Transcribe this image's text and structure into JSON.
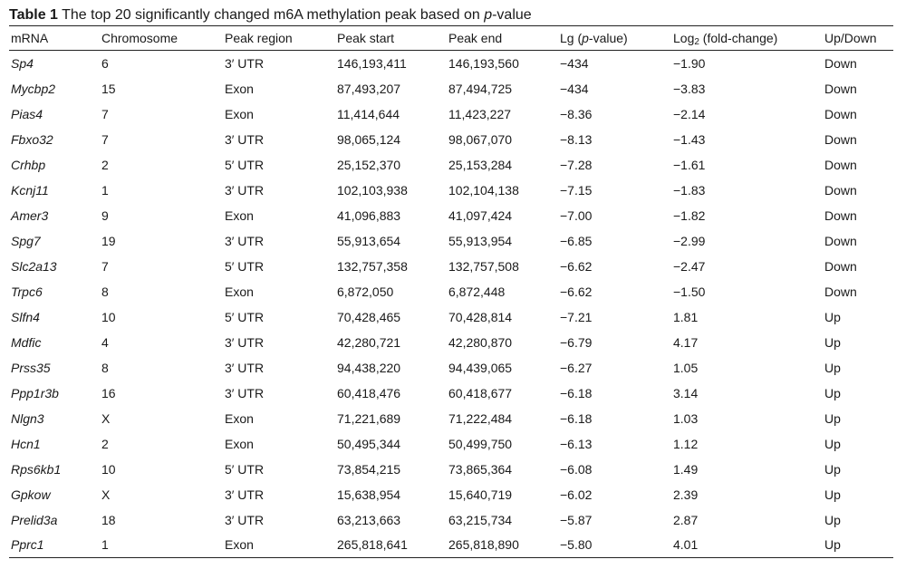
{
  "caption": {
    "label": "Table 1",
    "text_before": " The top 20 significantly changed m6A methylation peak based on ",
    "p": "p",
    "text_after": "-value"
  },
  "headers": {
    "mrna": "mRNA",
    "chromosome": "Chromosome",
    "peak_region": "Peak region",
    "peak_start": "Peak start",
    "peak_end": "Peak end",
    "lg_prefix": "Lg (",
    "lg_p": "p",
    "lg_suffix": "-value)",
    "log_prefix": "Log",
    "log_sub": "2",
    "log_suffix": " (fold-change)",
    "updown": "Up/Down"
  },
  "rows": [
    {
      "mrna": "Sp4",
      "chromosome": "6",
      "region": "3′ UTR",
      "start": "146,193,411",
      "end": "146,193,560",
      "lg": "−434",
      "log2fc": "−1.90",
      "dir": "Down"
    },
    {
      "mrna": "Mycbp2",
      "chromosome": "15",
      "region": "Exon",
      "start": "87,493,207",
      "end": "87,494,725",
      "lg": "−434",
      "log2fc": "−3.83",
      "dir": "Down"
    },
    {
      "mrna": "Pias4",
      "chromosome": "7",
      "region": "Exon",
      "start": "11,414,644",
      "end": "11,423,227",
      "lg": "−8.36",
      "log2fc": "−2.14",
      "dir": "Down"
    },
    {
      "mrna": "Fbxo32",
      "chromosome": "7",
      "region": "3′ UTR",
      "start": "98,065,124",
      "end": "98,067,070",
      "lg": "−8.13",
      "log2fc": "−1.43",
      "dir": "Down"
    },
    {
      "mrna": "Crhbp",
      "chromosome": "2",
      "region": "5′ UTR",
      "start": "25,152,370",
      "end": "25,153,284",
      "lg": "−7.28",
      "log2fc": "−1.61",
      "dir": "Down"
    },
    {
      "mrna": "Kcnj11",
      "chromosome": "1",
      "region": "3′ UTR",
      "start": "102,103,938",
      "end": "102,104,138",
      "lg": "−7.15",
      "log2fc": "−1.83",
      "dir": "Down"
    },
    {
      "mrna": "Amer3",
      "chromosome": "9",
      "region": "Exon",
      "start": "41,096,883",
      "end": "41,097,424",
      "lg": "−7.00",
      "log2fc": "−1.82",
      "dir": "Down"
    },
    {
      "mrna": "Spg7",
      "chromosome": "19",
      "region": "3′ UTR",
      "start": "55,913,654",
      "end": "55,913,954",
      "lg": "−6.85",
      "log2fc": "−2.99",
      "dir": "Down"
    },
    {
      "mrna": "Slc2a13",
      "chromosome": "7",
      "region": "5′ UTR",
      "start": "132,757,358",
      "end": "132,757,508",
      "lg": "−6.62",
      "log2fc": "−2.47",
      "dir": "Down"
    },
    {
      "mrna": "Trpc6",
      "chromosome": "8",
      "region": "Exon",
      "start": "6,872,050",
      "end": "6,872,448",
      "lg": "−6.62",
      "log2fc": "−1.50",
      "dir": "Down"
    },
    {
      "mrna": "Slfn4",
      "chromosome": "10",
      "region": "5′ UTR",
      "start": "70,428,465",
      "end": "70,428,814",
      "lg": "−7.21",
      "log2fc": "1.81",
      "dir": "Up"
    },
    {
      "mrna": "Mdfic",
      "chromosome": "4",
      "region": "3′ UTR",
      "start": "42,280,721",
      "end": "42,280,870",
      "lg": "−6.79",
      "log2fc": "4.17",
      "dir": "Up"
    },
    {
      "mrna": "Prss35",
      "chromosome": "8",
      "region": "3′ UTR",
      "start": "94,438,220",
      "end": "94,439,065",
      "lg": "−6.27",
      "log2fc": "1.05",
      "dir": "Up"
    },
    {
      "mrna": "Ppp1r3b",
      "chromosome": "16",
      "region": "3′ UTR",
      "start": "60,418,476",
      "end": "60,418,677",
      "lg": "−6.18",
      "log2fc": "3.14",
      "dir": "Up"
    },
    {
      "mrna": "Nlgn3",
      "chromosome": "X",
      "region": "Exon",
      "start": "71,221,689",
      "end": "71,222,484",
      "lg": "−6.18",
      "log2fc": "1.03",
      "dir": "Up"
    },
    {
      "mrna": "Hcn1",
      "chromosome": "2",
      "region": "Exon",
      "start": "50,495,344",
      "end": "50,499,750",
      "lg": "−6.13",
      "log2fc": "1.12",
      "dir": "Up"
    },
    {
      "mrna": "Rps6kb1",
      "chromosome": "10",
      "region": "5′ UTR",
      "start": "73,854,215",
      "end": "73,865,364",
      "lg": "−6.08",
      "log2fc": "1.49",
      "dir": "Up"
    },
    {
      "mrna": "Gpkow",
      "chromosome": "X",
      "region": "3′ UTR",
      "start": "15,638,954",
      "end": "15,640,719",
      "lg": "−6.02",
      "log2fc": "2.39",
      "dir": "Up"
    },
    {
      "mrna": "Prelid3a",
      "chromosome": "18",
      "region": "3′ UTR",
      "start": "63,213,663",
      "end": "63,215,734",
      "lg": "−5.87",
      "log2fc": "2.87",
      "dir": "Up"
    },
    {
      "mrna": "Pprc1",
      "chromosome": "1",
      "region": "Exon",
      "start": "265,818,641",
      "end": "265,818,890",
      "lg": "−5.80",
      "log2fc": "4.01",
      "dir": "Up"
    }
  ]
}
